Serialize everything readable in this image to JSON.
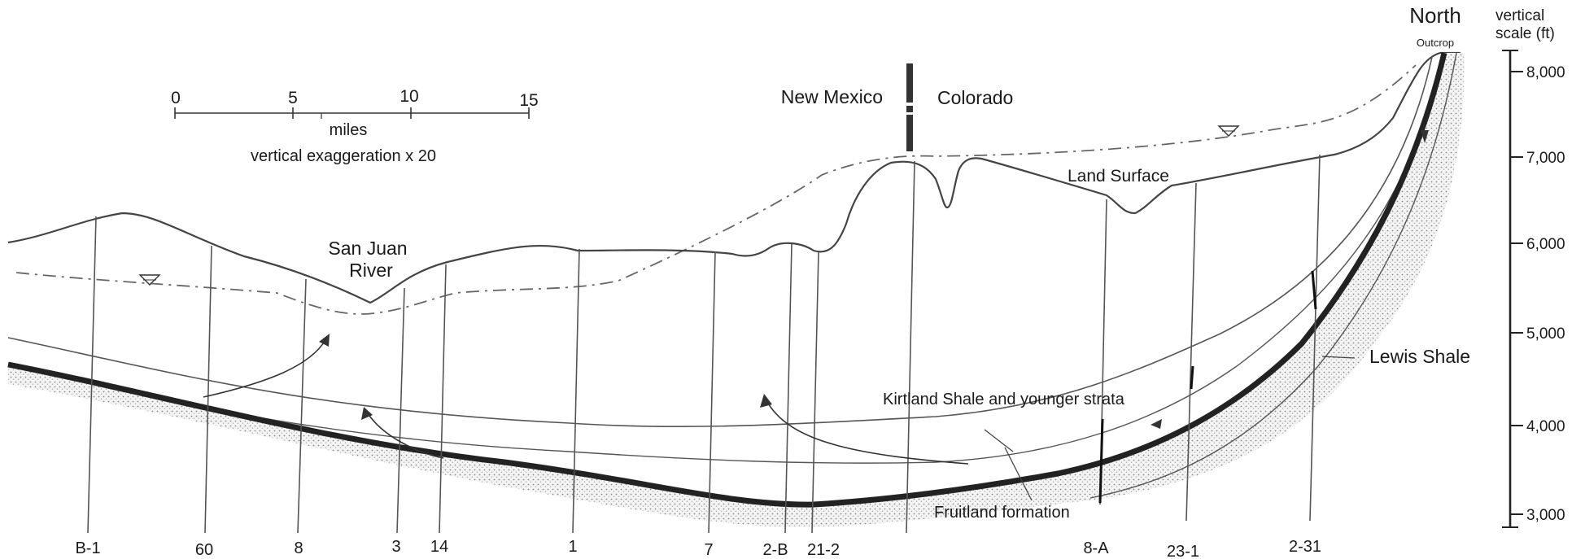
{
  "scale_bar": {
    "ticks": [
      "0",
      "5",
      "10",
      "15"
    ],
    "unit": "miles",
    "note": "vertical exaggeration x 20"
  },
  "state_labels": {
    "left": "New Mexico",
    "right": "Colorado"
  },
  "direction": {
    "title": "North",
    "outcrop": "Outcrop"
  },
  "vertical_scale": {
    "title_line1": "vertical",
    "title_line2": "scale (ft)",
    "ticks": [
      "8,000",
      "7,000",
      "6,000",
      "5,000",
      "4,000",
      "3,000"
    ]
  },
  "labels": {
    "land_surface": "Land Surface",
    "river_line1": "San Juan",
    "river_line2": "River",
    "kirtland": "Kirtland Shale and younger strata",
    "fruitland": "Fruitland formation",
    "lewis": "Lewis Shale"
  },
  "wells": [
    "B-1",
    "60",
    "8",
    "3",
    "14",
    "1",
    "7",
    "2-B",
    "21-2",
    "8-A",
    "23-1",
    "2-31"
  ]
}
